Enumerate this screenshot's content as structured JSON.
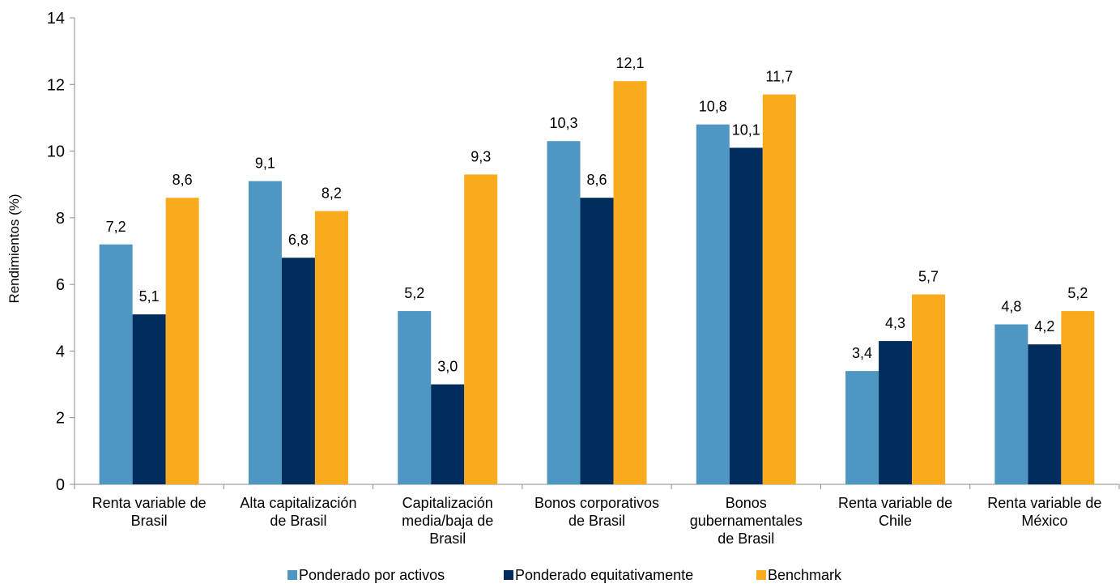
{
  "chart_data": {
    "type": "bar",
    "title": "",
    "xlabel": "",
    "ylabel": "Rendimientos (%)",
    "ylim": [
      0,
      14
    ],
    "yticks": [
      "0",
      "2",
      "4",
      "6",
      "8",
      "10",
      "12",
      "14"
    ],
    "grid": false,
    "legend_position": "bottom",
    "categories": [
      [
        "Renta variable de",
        "Brasil"
      ],
      [
        "Alta capitalización",
        "de Brasil"
      ],
      [
        "Capitalización",
        "media/baja de",
        "Brasil"
      ],
      [
        "Bonos corporativos",
        "de Brasil"
      ],
      [
        "Bonos",
        "gubernamentales",
        "de Brasil"
      ],
      [
        "Renta variable de",
        "Chile"
      ],
      [
        "Renta variable de",
        "México"
      ]
    ],
    "series": [
      {
        "name": "Ponderado por activos",
        "color": "#4f97c3",
        "values": [
          7.2,
          9.1,
          5.2,
          10.3,
          10.8,
          3.4,
          4.8
        ],
        "labels": [
          "7,2",
          "9,1",
          "5,2",
          "10,3",
          "10,8",
          "3,4",
          "4,8"
        ]
      },
      {
        "name": "Ponderado equitativamente",
        "color": "#002d5e",
        "values": [
          5.1,
          6.8,
          3.0,
          8.6,
          10.1,
          4.3,
          4.2
        ],
        "labels": [
          "5,1",
          "6,8",
          "3,0",
          "8,6",
          "10,1",
          "4,3",
          "4,2"
        ]
      },
      {
        "name": "Benchmark",
        "color": "#f9ab1d",
        "values": [
          8.6,
          8.2,
          9.3,
          12.1,
          11.7,
          5.7,
          5.2
        ],
        "labels": [
          "8,6",
          "8,2",
          "9,3",
          "12,1",
          "11,7",
          "5,7",
          "5,2"
        ]
      }
    ]
  }
}
